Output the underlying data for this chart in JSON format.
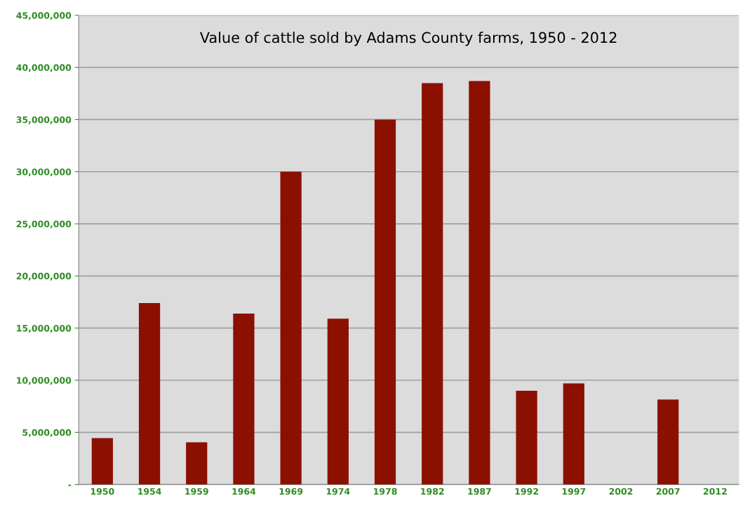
{
  "chart_data": {
    "type": "bar",
    "title": "Value of cattle sold by Adams County farms, 1950 - 2012",
    "categories": [
      "1950",
      "1954",
      "1959",
      "1964",
      "1969",
      "1974",
      "1978",
      "1982",
      "1987",
      "1992",
      "1997",
      "2002",
      "2007",
      "2012"
    ],
    "values": [
      4450000,
      17400000,
      4050000,
      16400000,
      30000000,
      15900000,
      35000000,
      38500000,
      38700000,
      9000000,
      9700000,
      null,
      8150000,
      null
    ],
    "color": "#8b1000",
    "ylim": [
      0,
      45000000
    ],
    "yticks": [
      {
        "value": 0,
        "label": "-"
      },
      {
        "value": 5000000,
        "label": "5,000,000"
      },
      {
        "value": 10000000,
        "label": "10,000,000"
      },
      {
        "value": 15000000,
        "label": "15,000,000"
      },
      {
        "value": 20000000,
        "label": "20,000,000"
      },
      {
        "value": 25000000,
        "label": "25,000,000"
      },
      {
        "value": 30000000,
        "label": "30,000,000"
      },
      {
        "value": 35000000,
        "label": "35,000,000"
      },
      {
        "value": 40000000,
        "label": "40,000,000"
      },
      {
        "value": 45000000,
        "label": "45,000,000"
      }
    ],
    "grid": "y",
    "legend": false
  }
}
